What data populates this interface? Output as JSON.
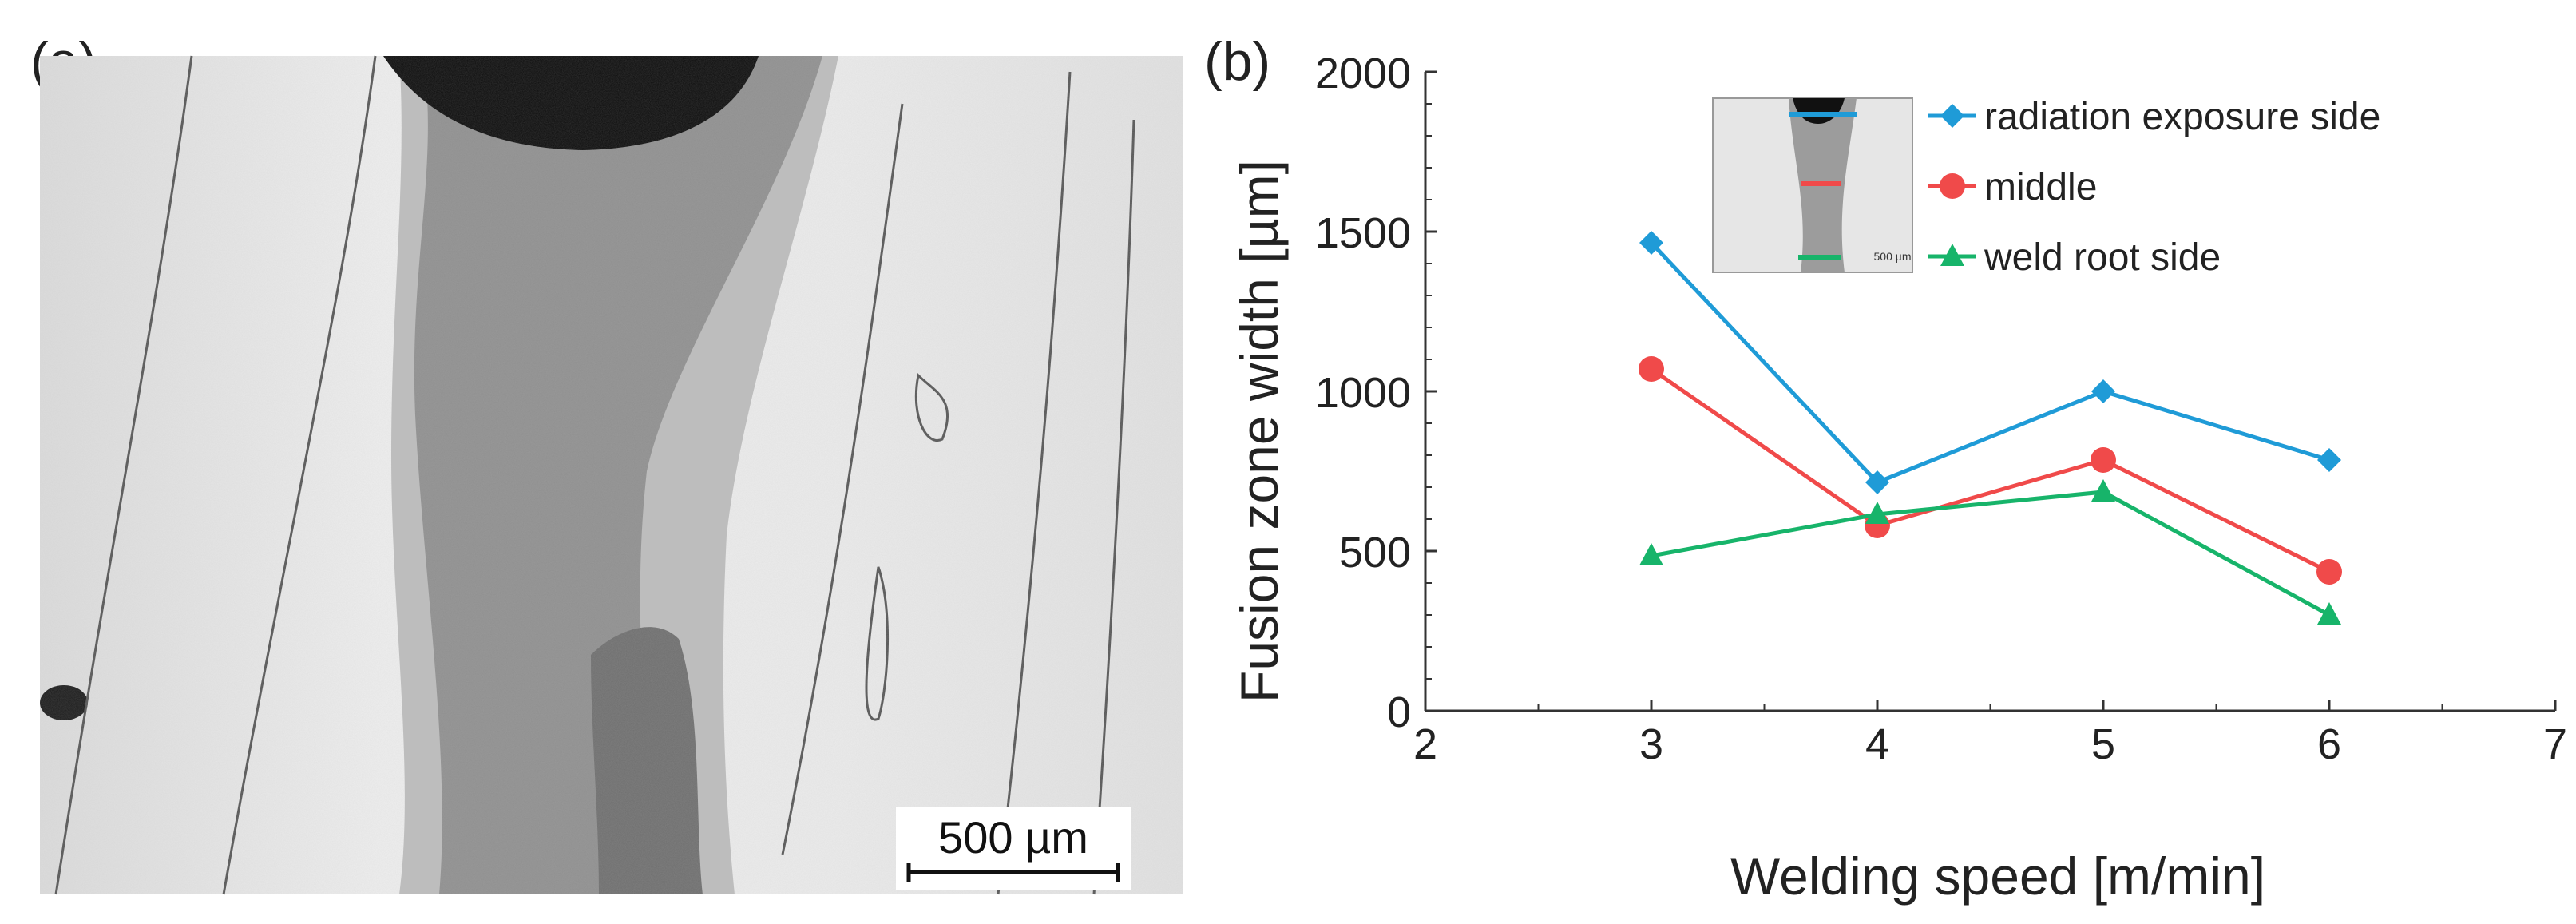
{
  "panel_a": {
    "label": "(a)",
    "scale_bar_label": "500 µm"
  },
  "panel_b": {
    "label": "(b)",
    "inset_scale_label": "500 µm"
  },
  "chart_data": {
    "type": "line",
    "title": "",
    "xlabel": "Welding speed [m/min]",
    "ylabel": "Fusion zone width  [µm]",
    "xlim": [
      2,
      7
    ],
    "ylim": [
      0,
      2000
    ],
    "xticks": [
      "2",
      "3",
      "4",
      "5",
      "6",
      "7"
    ],
    "yticks": [
      "0",
      "500",
      "1000",
      "1500",
      "2000"
    ],
    "grid": false,
    "legend_position": "top-right",
    "x": [
      3,
      4,
      5,
      6
    ],
    "series": [
      {
        "name": "radiation exposure side",
        "color": "#1f9bd7",
        "marker": "diamond",
        "values": [
          1465,
          715,
          1000,
          785
        ]
      },
      {
        "name": "middle",
        "color": "#f04a4a",
        "marker": "circle",
        "values": [
          1070,
          580,
          785,
          435
        ]
      },
      {
        "name": "weld root side",
        "color": "#17b46a",
        "marker": "triangle",
        "values": [
          485,
          615,
          685,
          300
        ]
      }
    ]
  }
}
